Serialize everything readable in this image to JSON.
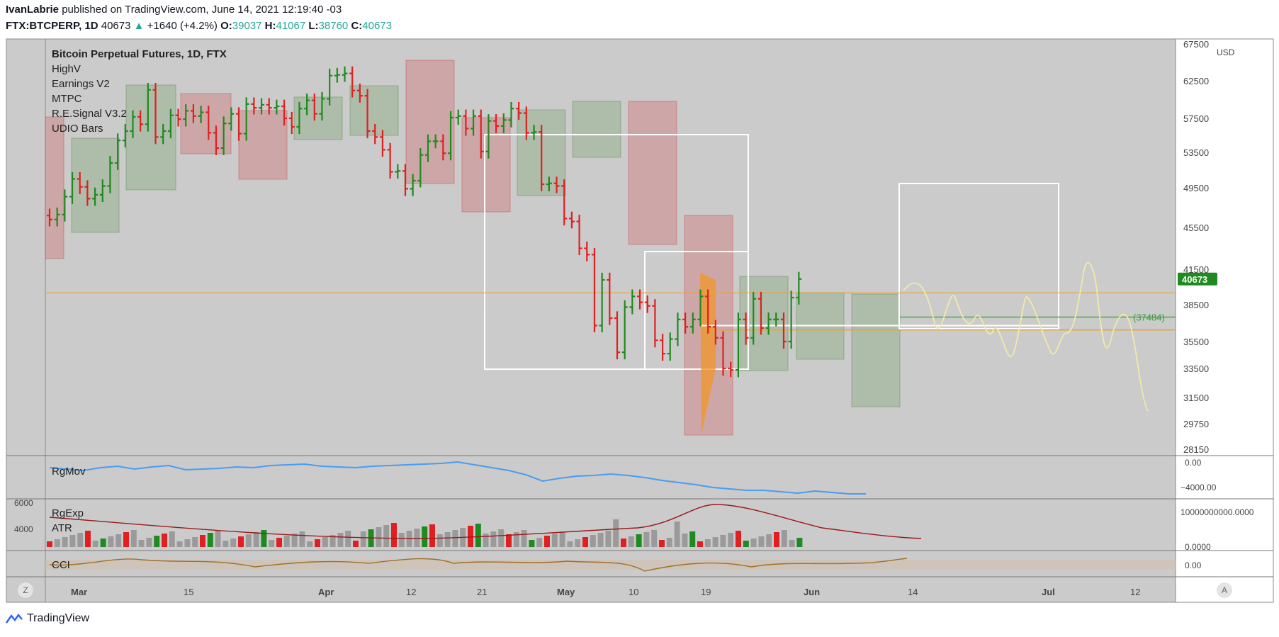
{
  "header": {
    "author": "IvanLabrie",
    "published_text": "published on TradingView.com, June 14, 2021 12:19:40 -03",
    "symbol": "FTX:BTCPERP, 1D",
    "last": "40673",
    "change_arrow": "▲",
    "change": "+1640 (+4.2%)",
    "open_label": "O:",
    "open": "39037",
    "high_label": "H:",
    "high": "41067",
    "low_label": "L:",
    "low": "38760",
    "close_label": "C:",
    "close": "40673"
  },
  "indicators": {
    "title": "Bitcoin Perpetual Futures, 1D, FTX",
    "items": [
      "HighV",
      "Earnings V2",
      "MTPC",
      "R.E.Signal V3.2",
      "UDIO Bars"
    ]
  },
  "panes": {
    "rgmov_label": "RgMov",
    "rgexp_label": "RgExp",
    "atr_label": "ATR",
    "cci_label": "CCI",
    "rgmov_ticks": [
      "0.00",
      "−4000.00"
    ],
    "rgexp_ticks": [
      "10000000000.0000",
      "0.0000"
    ],
    "rgexp_left_ticks": [
      "6000",
      "4000"
    ],
    "cci_ticks": [
      "0.00"
    ]
  },
  "footer": {
    "brand": "TradingView",
    "z_button": "Z",
    "a_button": "A"
  },
  "colors": {
    "background": "#cbcbcb",
    "up": "#1f8a1f",
    "down": "#e02020",
    "neutral": "#111111",
    "orange_line": "#f0a030",
    "green_line": "#4caf50",
    "price_tag": "#1f8a1f",
    "rgmov": "#4a9cf0",
    "rgexp": "#9a1a1a",
    "cci": "#a0702a",
    "projection": "#f0eaa8"
  },
  "chart_data": {
    "type": "ohlc",
    "currency": "USD",
    "y_ticks": [
      67500,
      62500,
      57500,
      53500,
      49500,
      45500,
      41500,
      38500,
      35500,
      33500,
      31500,
      29750,
      28150
    ],
    "x_ticks": [
      "Mar",
      "15",
      "Apr",
      "12",
      "21",
      "May",
      "10",
      "19",
      "Jun",
      "14",
      "Jul",
      "12"
    ],
    "last_price": 40673,
    "levels": [
      {
        "name": "orange-upper",
        "value": 39500
      },
      {
        "name": "orange-lower",
        "value": 36450
      },
      {
        "name": "green",
        "value": 37484,
        "label": "(37484)"
      }
    ],
    "candles_close": [
      46300,
      46800,
      48600,
      50500,
      49600,
      48400,
      48800,
      49700,
      52300,
      54900,
      56000,
      57700,
      56800,
      61300,
      55300,
      56000,
      57900,
      57400,
      58500,
      57800,
      58300,
      55800,
      54000,
      56900,
      58100,
      55700,
      59400,
      58900,
      59300,
      58900,
      59100,
      57500,
      56500,
      58800,
      59900,
      58100,
      60100,
      63200,
      63300,
      63500,
      61200,
      60500,
      56000,
      55300,
      53800,
      51300,
      51400,
      49400,
      50300,
      53200,
      54800,
      54800,
      53400,
      57600,
      57800,
      56300,
      57800,
      53600,
      57200,
      56600,
      57300,
      58800,
      58200,
      55800,
      55900,
      49900,
      50000,
      49700,
      46400,
      46100,
      43500,
      42900,
      36800,
      40600,
      37400,
      34700,
      38300,
      39200,
      38700,
      38400,
      35600,
      34600,
      35700,
      37300,
      36700,
      37300,
      39200,
      36700,
      35800,
      33500,
      33400,
      37300,
      35800,
      39000,
      36600,
      37300,
      37300,
      35500,
      39100,
      40673
    ]
  }
}
